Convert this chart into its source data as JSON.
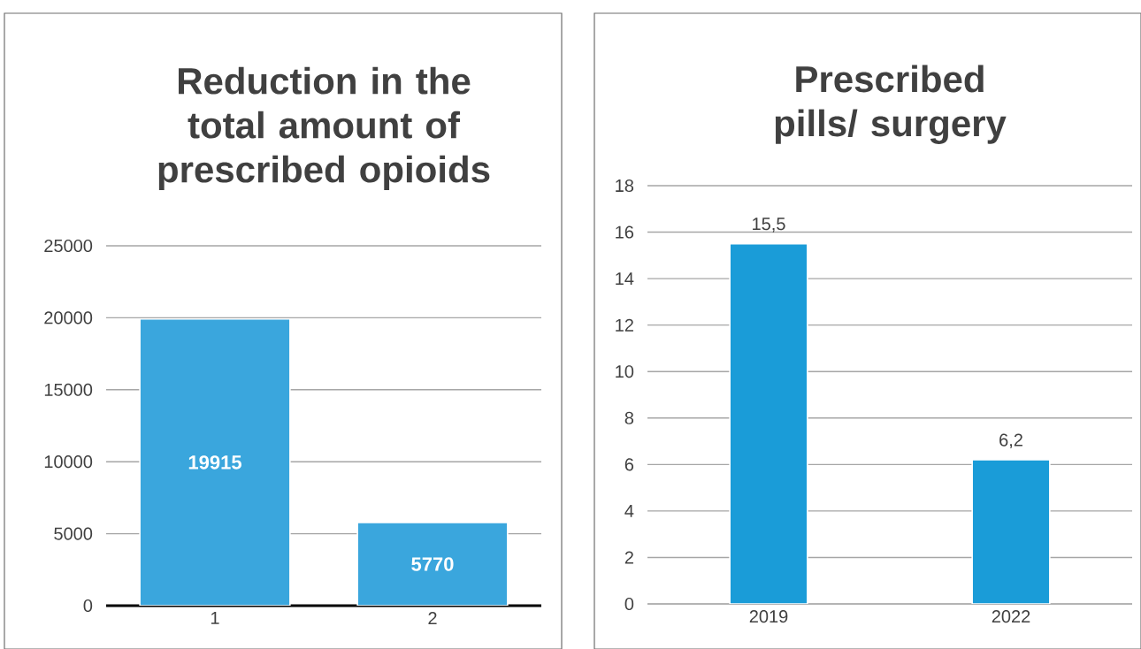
{
  "chart_data": [
    {
      "type": "bar",
      "title": "Reduction in the total amount of prescribed opioids",
      "categories": [
        "1",
        "2"
      ],
      "values": [
        19915,
        5770
      ],
      "color": "#3aa6dd",
      "ylim": [
        0,
        25000
      ],
      "yticks": [
        0,
        5000,
        10000,
        15000,
        20000,
        25000
      ],
      "grid": "y",
      "data_labels": true
    },
    {
      "type": "bar",
      "title": "Prescribed pills/ surgery",
      "categories": [
        "2019",
        "2022"
      ],
      "values": [
        15.5,
        6.2
      ],
      "value_labels": [
        "15,5",
        "6,2"
      ],
      "color": "#1a9cd8",
      "ylim": [
        0,
        18
      ],
      "yticks": [
        0,
        2,
        4,
        6,
        8,
        10,
        12,
        14,
        16,
        18
      ],
      "grid": "y"
    }
  ]
}
